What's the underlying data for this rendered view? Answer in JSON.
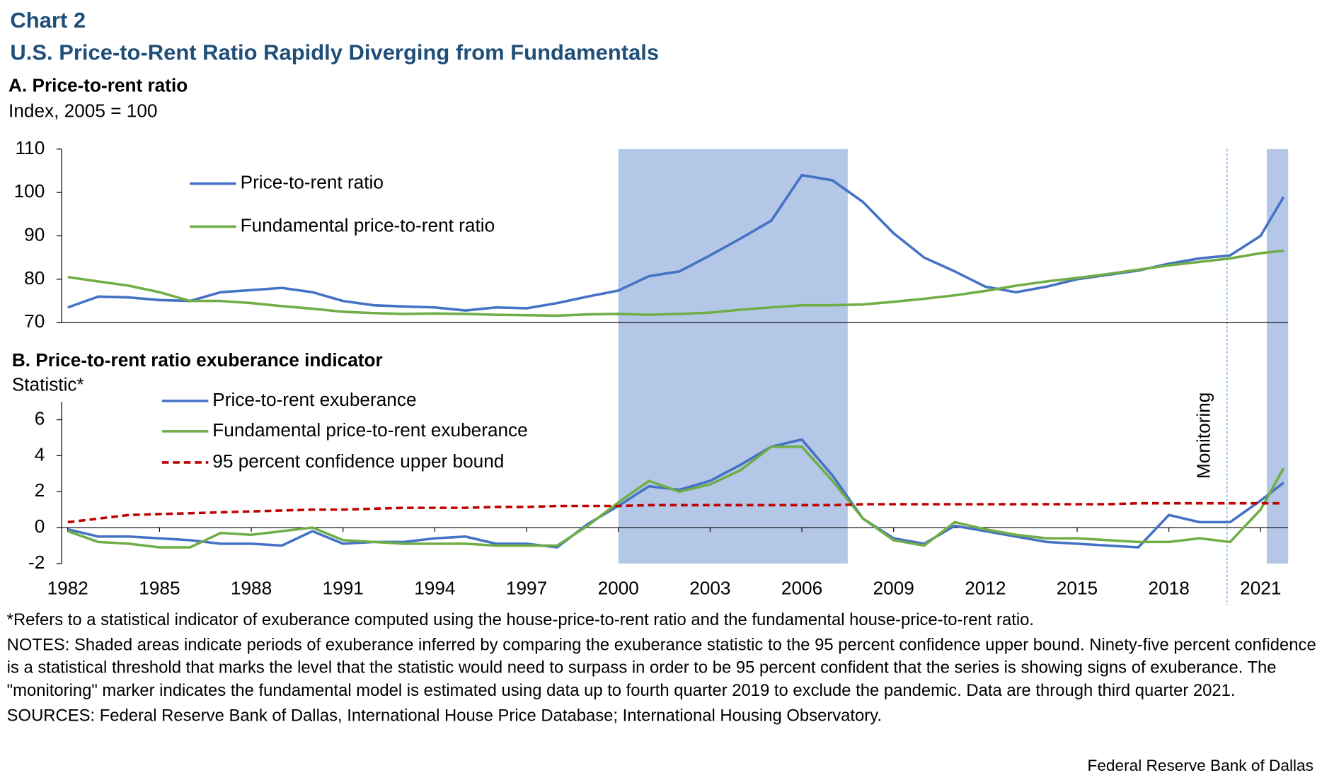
{
  "header": {
    "chart_number": "Chart 2",
    "title": "U.S. Price-to-Rent Ratio Rapidly Diverging from Fundamentals"
  },
  "shaded_periods": [
    [
      2000,
      2007.5
    ],
    [
      2021.2,
      2021.9
    ]
  ],
  "monitoring": {
    "x": 2019.9,
    "label": "Monitoring"
  },
  "chart_data": [
    {
      "type": "line",
      "title": "A. Price-to-rent ratio",
      "y_label": "Index, 2005 = 100",
      "x": [
        1982,
        1983,
        1984,
        1985,
        1986,
        1987,
        1988,
        1989,
        1990,
        1991,
        1992,
        1993,
        1994,
        1995,
        1996,
        1997,
        1998,
        1999,
        2000,
        2001,
        2002,
        2003,
        2004,
        2005,
        2006,
        2007,
        2008,
        2009,
        2010,
        2011,
        2012,
        2013,
        2014,
        2015,
        2016,
        2017,
        2018,
        2019,
        2020,
        2021,
        2021.75
      ],
      "xlim": [
        1981.8,
        2021.9
      ],
      "ylim": [
        70,
        110
      ],
      "yticks": [
        70,
        80,
        90,
        100,
        110
      ],
      "series": [
        {
          "name": "Price-to-rent ratio",
          "color": "#4472c4",
          "style": "solid",
          "values": [
            73.5,
            76,
            75.8,
            75.2,
            75,
            77,
            77.5,
            78,
            77,
            75,
            74,
            73.7,
            73.5,
            72.8,
            73.5,
            73.3,
            74.5,
            76,
            77.4,
            80.7,
            81.8,
            85.5,
            89.4,
            93.5,
            104,
            102.8,
            97.8,
            90.6,
            85,
            81.8,
            78.3,
            77,
            78.3,
            80,
            81,
            82,
            83.6,
            84.8,
            85.5,
            90,
            99
          ]
        },
        {
          "name": "Fundamental price-to-rent ratio",
          "color": "#70ad47",
          "style": "solid",
          "values": [
            80.5,
            79.5,
            78.5,
            77,
            75,
            75,
            74.5,
            73.8,
            73.2,
            72.5,
            72.2,
            72,
            72.1,
            72,
            71.8,
            71.7,
            71.6,
            71.9,
            72,
            71.8,
            72,
            72.3,
            73,
            73.5,
            74,
            74,
            74.2,
            74.8,
            75.5,
            76.3,
            77.3,
            78.5,
            79.5,
            80.3,
            81.2,
            82.2,
            83.2,
            84,
            84.8,
            86,
            86.6
          ]
        }
      ]
    },
    {
      "type": "line",
      "title": "B. Price-to-rent ratio exuberance indicator",
      "y_label": "Statistic*",
      "x": [
        1982,
        1983,
        1984,
        1985,
        1986,
        1987,
        1988,
        1989,
        1990,
        1991,
        1992,
        1993,
        1994,
        1995,
        1996,
        1997,
        1998,
        1999,
        2000,
        2001,
        2002,
        2003,
        2004,
        2005,
        2006,
        2007,
        2008,
        2009,
        2010,
        2011,
        2012,
        2013,
        2014,
        2015,
        2016,
        2017,
        2018,
        2019,
        2020,
        2021,
        2021.75
      ],
      "xlim": [
        1981.8,
        2021.9
      ],
      "ylim": [
        -2,
        7
      ],
      "yticks": [
        -2,
        0,
        2,
        4,
        6
      ],
      "xticks": [
        1982,
        1985,
        1988,
        1991,
        1994,
        1997,
        2000,
        2003,
        2006,
        2009,
        2012,
        2015,
        2018,
        2021
      ],
      "series": [
        {
          "name": "Price-to-rent exuberance",
          "color": "#4472c4",
          "style": "solid",
          "values": [
            -0.1,
            -0.5,
            -0.5,
            -0.6,
            -0.7,
            -0.9,
            -0.9,
            -1.0,
            -0.2,
            -0.9,
            -0.8,
            -0.8,
            -0.6,
            -0.5,
            -0.9,
            -0.9,
            -1.1,
            0.2,
            1.2,
            2.3,
            2.1,
            2.6,
            3.5,
            4.5,
            4.9,
            2.9,
            0.5,
            -0.6,
            -0.9,
            0.1,
            -0.2,
            -0.5,
            -0.8,
            -0.9,
            -1.0,
            -1.1,
            0.7,
            0.3,
            0.3,
            1.5,
            2.5
          ]
        },
        {
          "name": "Fundamental price-to-rent exuberance",
          "color": "#70ad47",
          "style": "solid",
          "values": [
            -0.2,
            -0.8,
            -0.9,
            -1.1,
            -1.1,
            -0.3,
            -0.4,
            -0.2,
            0.0,
            -0.7,
            -0.8,
            -0.9,
            -0.9,
            -0.9,
            -1.0,
            -1.0,
            -1.0,
            0.1,
            1.4,
            2.6,
            2.0,
            2.4,
            3.2,
            4.5,
            4.5,
            2.6,
            0.5,
            -0.7,
            -1.0,
            0.3,
            -0.1,
            -0.4,
            -0.6,
            -0.6,
            -0.7,
            -0.8,
            -0.8,
            -0.6,
            -0.8,
            1.0,
            3.3
          ]
        },
        {
          "name": "95 percent confidence upper bound",
          "color": "#c00000",
          "style": "dashed",
          "values": [
            0.3,
            0.5,
            0.7,
            0.75,
            0.8,
            0.85,
            0.9,
            0.95,
            1.0,
            1.0,
            1.05,
            1.1,
            1.1,
            1.1,
            1.15,
            1.15,
            1.2,
            1.2,
            1.2,
            1.25,
            1.25,
            1.25,
            1.25,
            1.25,
            1.25,
            1.25,
            1.3,
            1.3,
            1.3,
            1.3,
            1.3,
            1.3,
            1.3,
            1.3,
            1.3,
            1.35,
            1.35,
            1.35,
            1.35,
            1.35,
            1.35
          ]
        }
      ]
    }
  ],
  "footnotes": {
    "asterisk": "*Refers to a statistical indicator of exuberance computed using the house-price-to-rent ratio and the fundamental house-price-to-rent ratio.",
    "notes": "NOTES: Shaded areas indicate periods of exuberance inferred by comparing the exuberance statistic to the 95 percent confidence upper bound. Ninety-five percent confidence is a statistical threshold that marks the level that the statistic would need to surpass in order to be 95 percent confident that the series is showing signs of exuberance. The \"monitoring\" marker indicates the fundamental model is estimated using data up to fourth quarter 2019 to exclude the pandemic. Data are through third quarter 2021.",
    "sources": "SOURCES: Federal Reserve Bank of Dallas, International House Price Database; International Housing Observatory."
  },
  "credit": "Federal Reserve Bank of Dallas"
}
